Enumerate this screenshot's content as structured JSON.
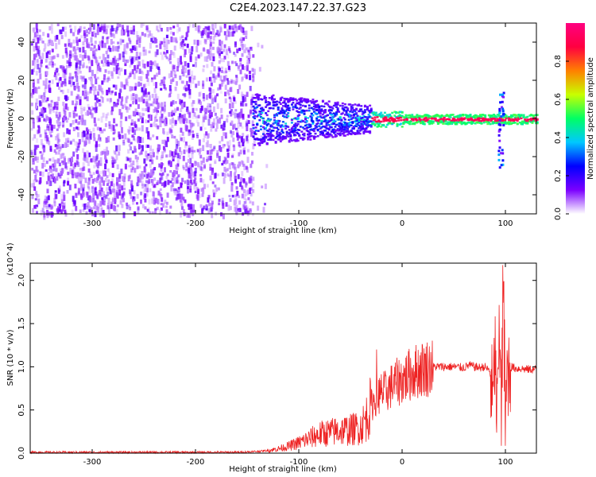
{
  "title": "C2E4.2023.147.22.37.G23",
  "chart_data": [
    {
      "type": "heatmap",
      "xlabel": "Height of straight line (km)",
      "ylabel": "Frequency (Hz)",
      "xlim": [
        -360,
        130
      ],
      "ylim": [
        -50,
        50
      ],
      "xticks": [
        -300,
        -200,
        -100,
        0,
        100
      ],
      "yticks": [
        -40,
        -20,
        0,
        20,
        40
      ],
      "colorbar": {
        "label": "Normalized spectral amplitude",
        "range": [
          0,
          1
        ],
        "ticks": [
          "0.0",
          "0.2",
          "0.4",
          "0.6",
          "0.8"
        ],
        "colors": [
          "#ffffff",
          "#7b00ff",
          "#0000ff",
          "#00c8ff",
          "#00ff64",
          "#c8ff00",
          "#ff8000",
          "#ff0040",
          "#ff0080"
        ]
      },
      "features": {
        "noise_region_x": [
          -360,
          -145
        ],
        "trace_x_start": -145,
        "trace_center_freq": 0,
        "spike_x": 95
      }
    },
    {
      "type": "line",
      "xlabel": "Height of straight line (km)",
      "ylabel": "SNR (10 * v/v)",
      "y_multiplier": "(x10^4)",
      "xlim": [
        -360,
        130
      ],
      "ylim": [
        0,
        2.2
      ],
      "xticks": [
        -300,
        -200,
        -100,
        0,
        100
      ],
      "yticks": [
        "0.0",
        "0.5",
        "1.0",
        "1.5",
        "2.0"
      ],
      "series": [
        {
          "color": "#ee2222",
          "x": [
            -360,
            -300,
            -250,
            -200,
            -160,
            -140,
            -130,
            -120,
            -110,
            -100,
            -90,
            -80,
            -70,
            -60,
            -50,
            -40,
            -35,
            -30,
            -25,
            -20,
            -15,
            -10,
            -5,
            0,
            10,
            20,
            30,
            40,
            50,
            60,
            65,
            70,
            75,
            80,
            85,
            88,
            90,
            92,
            94,
            96,
            98,
            100,
            102,
            104,
            106,
            110,
            115,
            120,
            130
          ],
          "y": [
            0.01,
            0.01,
            0.01,
            0.01,
            0.01,
            0.02,
            0.03,
            0.05,
            0.08,
            0.12,
            0.17,
            0.22,
            0.24,
            0.26,
            0.27,
            0.3,
            0.4,
            0.55,
            0.65,
            0.7,
            0.72,
            0.78,
            0.82,
            0.85,
            0.93,
            0.98,
            1.0,
            1.0,
            1.0,
            0.99,
            1.02,
            1.0,
            0.99,
            1.0,
            0.95,
            0.55,
            1.2,
            0.3,
            1.6,
            0.35,
            1.9,
            0.4,
            1.0,
            0.95,
            1.0,
            0.98,
            0.98,
            0.97,
            0.97
          ]
        }
      ]
    }
  ]
}
